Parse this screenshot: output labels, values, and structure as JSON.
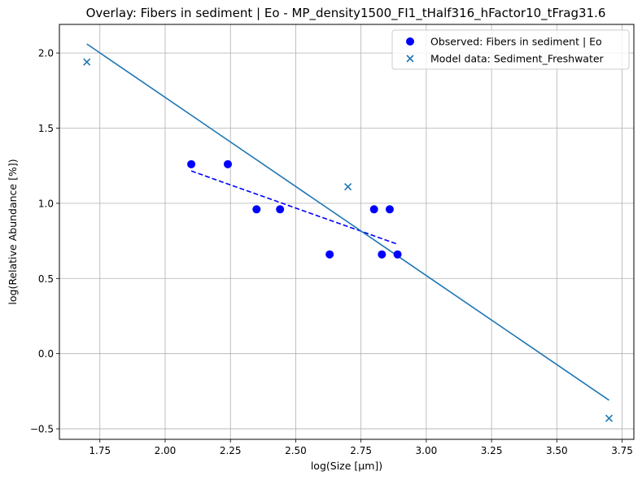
{
  "chart_data": {
    "type": "scatter",
    "title": "Overlay: Fibers in sediment | Eo - MP_density1500_FI1_tHalf316_hFactor10_tFrag31.6",
    "xlabel": "log(Size [μm])",
    "ylabel": "log(Relative Abundance [%])",
    "xlim": [
      1.595,
      3.795
    ],
    "ylim": [
      -0.57,
      2.19
    ],
    "xticks": [
      1.75,
      2.0,
      2.25,
      2.5,
      2.75,
      3.0,
      3.25,
      3.5,
      3.75
    ],
    "xtick_labels": [
      "1.75",
      "2.00",
      "2.25",
      "2.50",
      "2.75",
      "3.00",
      "3.25",
      "3.50",
      "3.75"
    ],
    "yticks": [
      -0.5,
      0.0,
      0.5,
      1.0,
      1.5,
      2.0
    ],
    "ytick_labels": [
      "−0.5",
      "0.0",
      "0.5",
      "1.0",
      "1.5",
      "2.0"
    ],
    "grid": true,
    "legend_position": "top-right",
    "colors": {
      "observed": "#0000ff",
      "model": "#1f77b4"
    },
    "series": [
      {
        "name": "Observed: Fibers in sediment | Eo",
        "marker": "circle",
        "x": [
          2.1,
          2.24,
          2.35,
          2.44,
          2.63,
          2.8,
          2.83,
          2.86,
          2.89
        ],
        "y": [
          1.26,
          1.26,
          0.96,
          0.96,
          0.66,
          0.96,
          0.66,
          0.96,
          0.66
        ]
      },
      {
        "name": "Model data: Sediment_Freshwater",
        "marker": "x",
        "x": [
          1.7,
          2.7,
          3.7
        ],
        "y": [
          1.94,
          1.11,
          -0.43
        ]
      }
    ],
    "fit_lines": [
      {
        "style": "dashed",
        "color": "#0000ff",
        "x": [
          2.1,
          2.89
        ],
        "y": [
          1.215,
          0.728
        ]
      },
      {
        "style": "solid",
        "color": "#1f77b4",
        "x": [
          1.7,
          3.7
        ],
        "y": [
          2.06,
          -0.31
        ]
      }
    ]
  }
}
